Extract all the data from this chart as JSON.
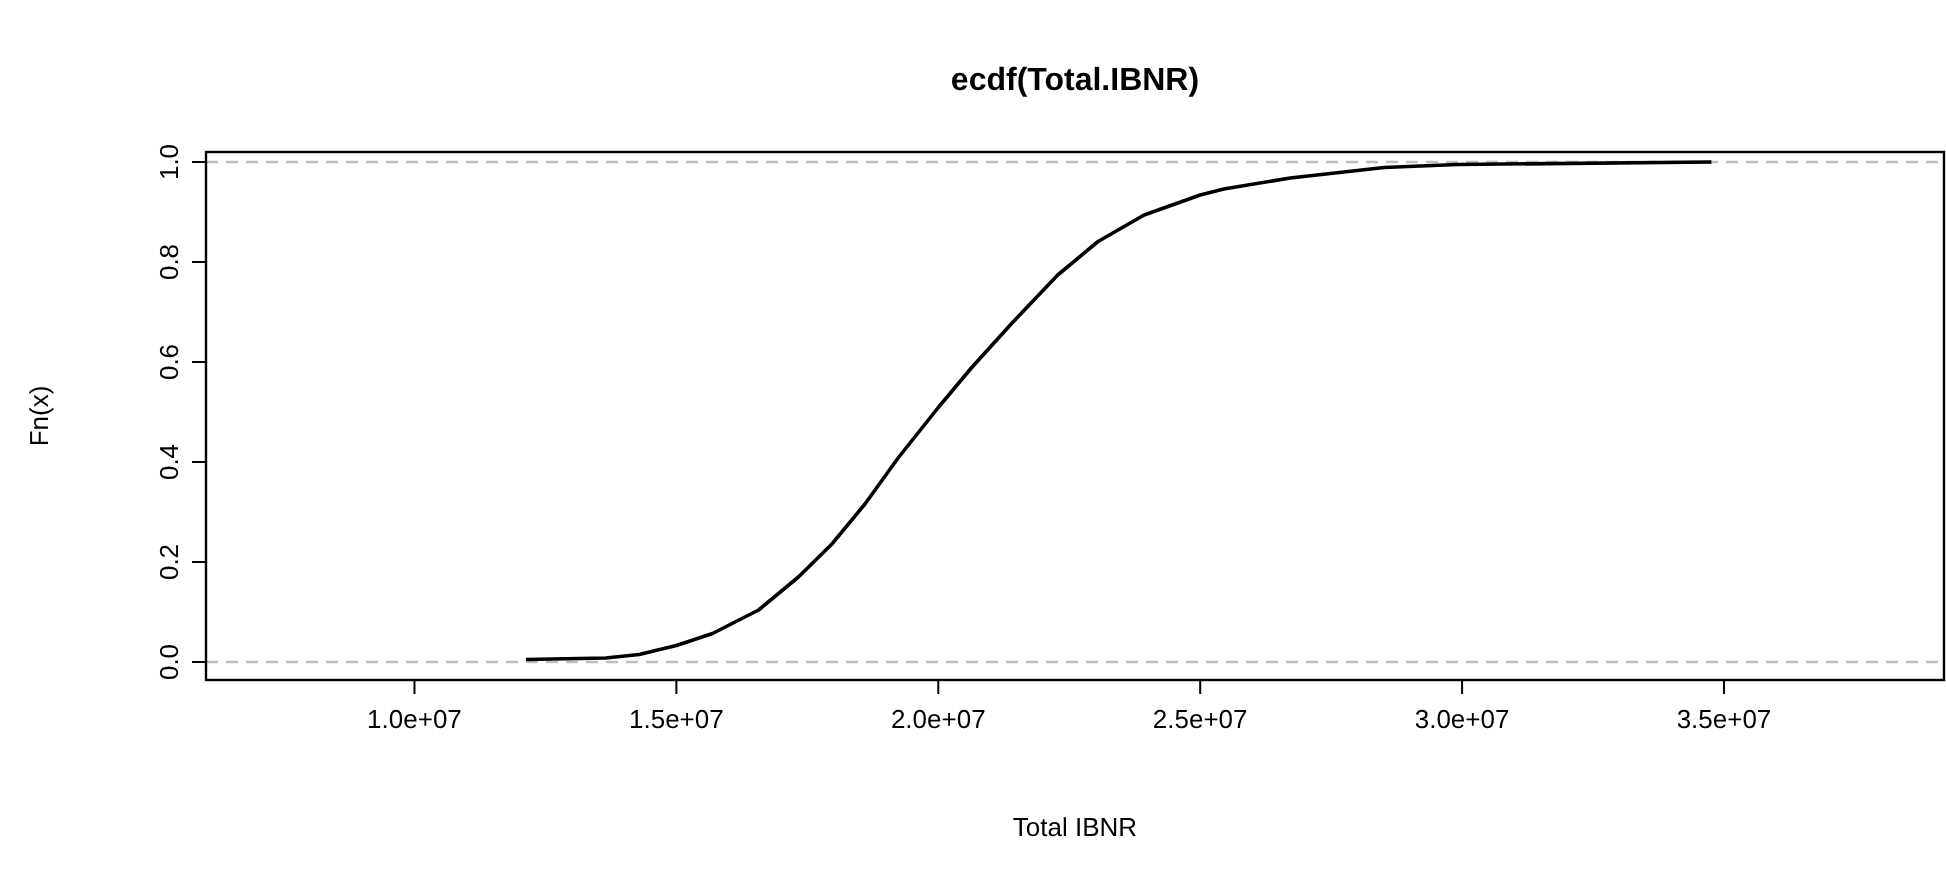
{
  "chart_data": {
    "type": "line",
    "title": "ecdf(Total.IBNR)",
    "xlabel": "Total IBNR",
    "ylabel": "Fn(x)",
    "xlim": [
      6020000,
      39200000
    ],
    "ylim": [
      -0.036,
      1.02
    ],
    "xticks": [
      {
        "value": 10000000,
        "label": "1.0e+07"
      },
      {
        "value": 15000000,
        "label": "1.5e+07"
      },
      {
        "value": 20000000,
        "label": "2.0e+07"
      },
      {
        "value": 25000000,
        "label": "2.5e+07"
      },
      {
        "value": 30000000,
        "label": "3.0e+07"
      },
      {
        "value": 35000000,
        "label": "3.5e+07"
      }
    ],
    "yticks": [
      {
        "value": 0,
        "label": "0.0"
      },
      {
        "value": 0.2,
        "label": "0.2"
      },
      {
        "value": 0.4,
        "label": "0.4"
      },
      {
        "value": 0.6,
        "label": "0.6"
      },
      {
        "value": 0.8,
        "label": "0.8"
      },
      {
        "value": 1,
        "label": "1.0"
      }
    ],
    "grid": false,
    "marker": "none",
    "line_style": "solid",
    "ref_lines": [
      {
        "axis": "y",
        "value": 0,
        "color": "#bfbfbf",
        "line_style": "dashed"
      },
      {
        "axis": "y",
        "value": 1,
        "color": "#bfbfbf",
        "line_style": "dashed"
      }
    ],
    "series": [
      {
        "color": "#000000",
        "x": [
          12130000,
          13650000,
          14290000,
          15000000,
          15690000,
          16570000,
          17330000,
          17970000,
          18600000,
          19240000,
          20000000,
          20630000,
          21400000,
          22280000,
          23050000,
          23930000,
          25000000,
          25450000,
          26720000,
          28510000,
          29910000,
          34760000
        ],
        "values": [
          0.005,
          0.008,
          0.015,
          0.033,
          0.057,
          0.104,
          0.17,
          0.236,
          0.316,
          0.409,
          0.509,
          0.588,
          0.677,
          0.774,
          0.841,
          0.894,
          0.934,
          0.946,
          0.968,
          0.989,
          0.995,
          1.0
        ]
      }
    ]
  }
}
